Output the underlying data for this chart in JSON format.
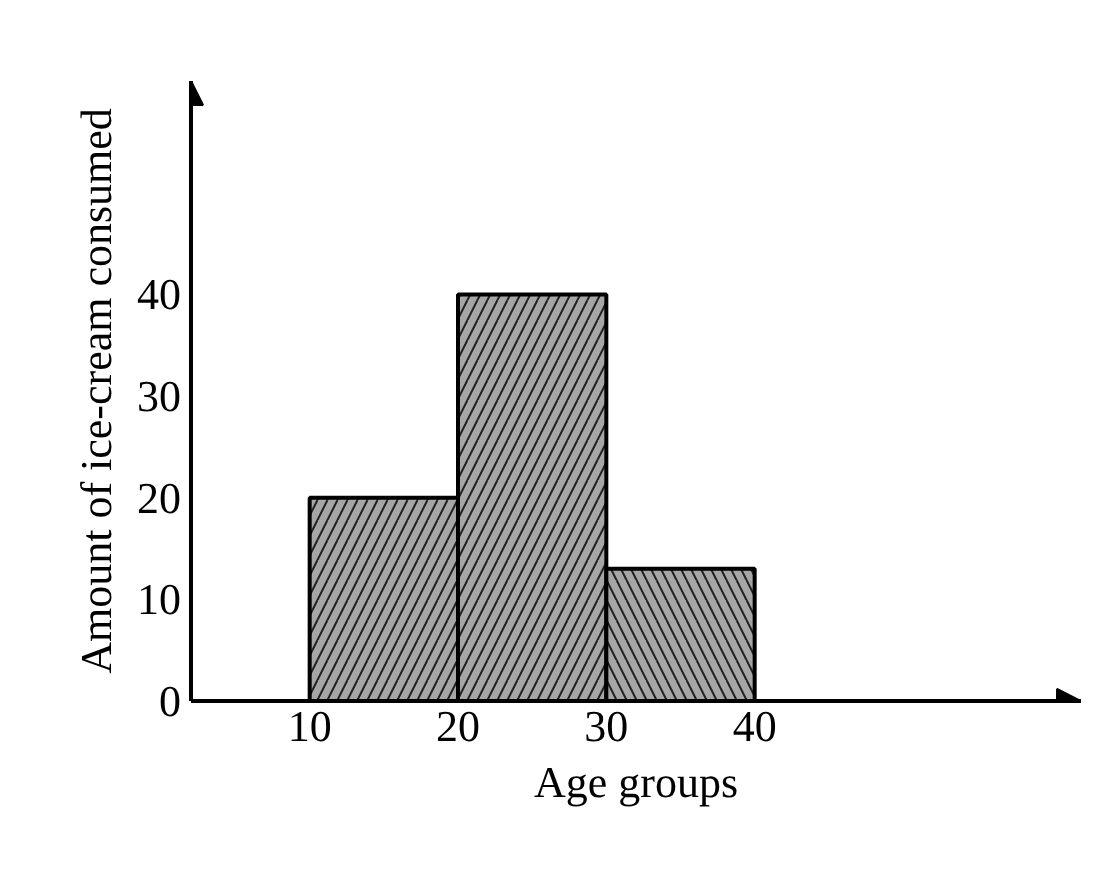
{
  "chart_data": {
    "type": "histogram",
    "xlabel": "Age groups",
    "ylabel": "Amount of ice-cream consumed",
    "bins": [
      10,
      20,
      30,
      40
    ],
    "values": [
      20,
      40,
      13
    ],
    "color": "#a6a6a6",
    "xlim": [
      2,
      62
    ],
    "ylim": [
      0,
      61
    ],
    "xticks": [
      10,
      20,
      30,
      40
    ],
    "yticks": [
      0,
      10,
      20,
      30,
      40
    ],
    "grid": false
  }
}
